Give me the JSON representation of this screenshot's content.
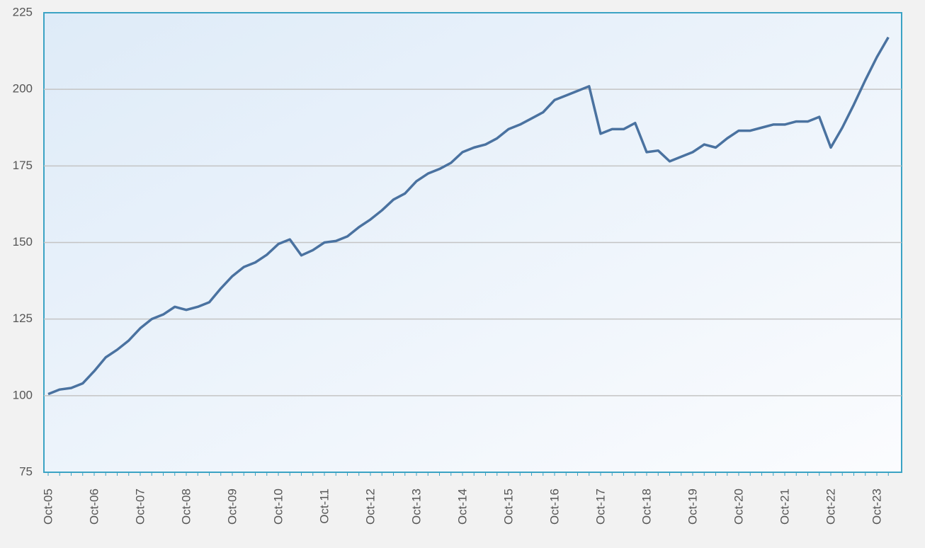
{
  "chart_data": {
    "type": "line",
    "categories": [
      "Oct-05",
      null,
      null,
      null,
      "Oct-06",
      null,
      null,
      null,
      "Oct-07",
      null,
      null,
      null,
      "Oct-08",
      null,
      null,
      null,
      "Oct-09",
      null,
      null,
      null,
      "Oct-10",
      null,
      null,
      null,
      "Oct-11",
      null,
      null,
      null,
      "Oct-12",
      null,
      null,
      null,
      "Oct-13",
      null,
      null,
      null,
      "Oct-14",
      null,
      null,
      null,
      "Oct-15",
      null,
      null,
      null,
      "Oct-16",
      null,
      null,
      null,
      "Oct-17",
      null,
      null,
      null,
      "Oct-18",
      null,
      null,
      null,
      "Oct-19",
      null,
      null,
      null,
      "Oct-20",
      null,
      null,
      null,
      "Oct-21",
      null,
      null,
      null,
      "Oct-22",
      null,
      null,
      null,
      "Oct-23",
      null
    ],
    "values": [
      100.5,
      102,
      102.5,
      104,
      108,
      112.5,
      115,
      118,
      122,
      125,
      126.5,
      129,
      128,
      129,
      130.5,
      135,
      139,
      142,
      143.5,
      146,
      149.5,
      151,
      145.8,
      147.5,
      150,
      150.5,
      152,
      155,
      157.5,
      160.5,
      164,
      166,
      170,
      172.5,
      174,
      176,
      179.5,
      181,
      182,
      184,
      187,
      188.5,
      190.5,
      192.5,
      196.5,
      198,
      199.5,
      201,
      185.5,
      187,
      187,
      189,
      179.5,
      180,
      176.5,
      178,
      179.5,
      182,
      181,
      184,
      186.5,
      186.5,
      187.5,
      188.5,
      188.5,
      189.5,
      189.5,
      191,
      181,
      187.5,
      195,
      203,
      210.5,
      217
    ],
    "color": "#4a72a0",
    "ylim": [
      75,
      225
    ],
    "yticks": [
      75,
      100,
      125,
      150,
      175,
      200,
      225
    ],
    "grid": true
  }
}
